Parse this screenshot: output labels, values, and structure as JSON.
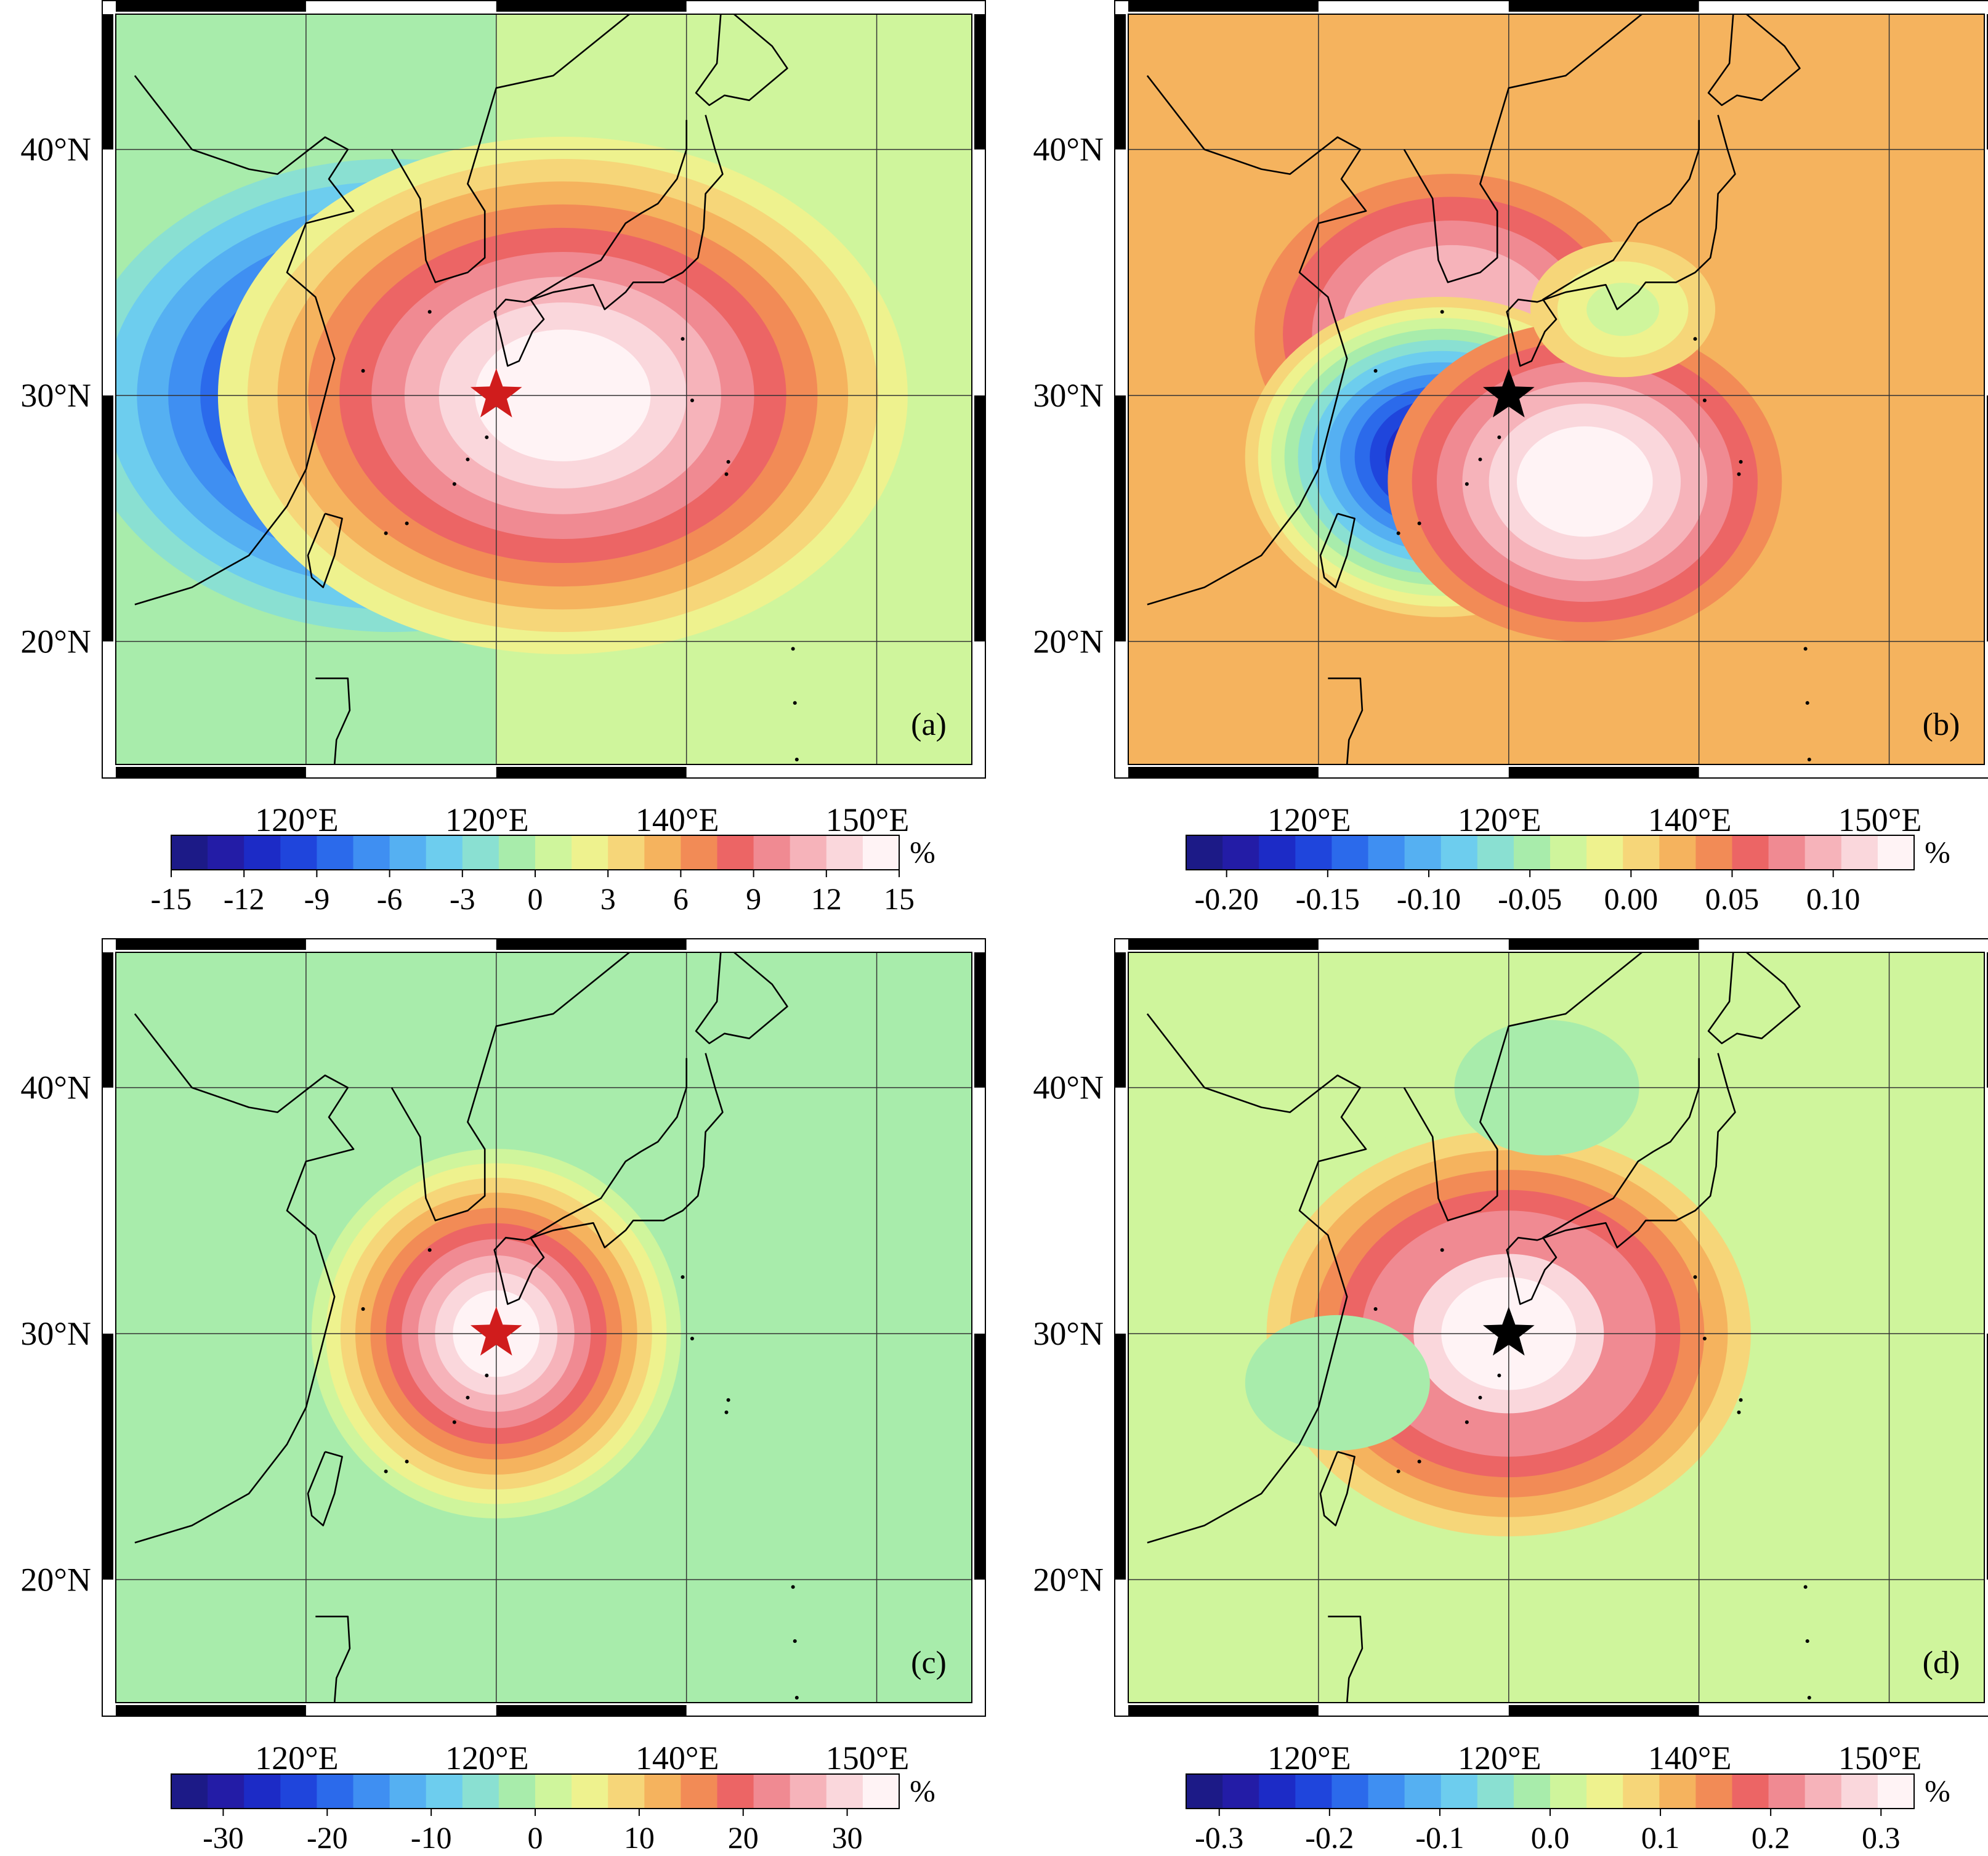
{
  "chart_data": [
    {
      "type": "heatmap",
      "panel_label": "(a)",
      "x_tick_labels": [
        "120°E",
        "120°E",
        "140°E",
        "150°E"
      ],
      "y_tick_labels": [
        "40°N",
        "30°N",
        "20°N"
      ],
      "colorbar": {
        "unit": "%",
        "ticks": [
          -15,
          -12,
          -9,
          -6,
          -3,
          0,
          3,
          6,
          9,
          12,
          15
        ],
        "tick_labels": [
          "-15",
          "-12",
          "-9",
          "-6",
          "-3",
          "0",
          "3",
          "6",
          "9",
          "12",
          "15"
        ],
        "range": [
          -15,
          15
        ]
      },
      "marker": {
        "type": "star",
        "color": "#d01c1c",
        "lon": 130,
        "lat": 30
      },
      "background_west": -1.5,
      "background_east": 0.8,
      "features": [
        {
          "kind": "negative-lobe",
          "lon": 124.5,
          "lat": 30,
          "peak": -15
        },
        {
          "kind": "positive-lobe",
          "lon": 133.5,
          "lat": 30,
          "peak": 15
        }
      ]
    },
    {
      "type": "heatmap",
      "panel_label": "(b)",
      "x_tick_labels": [
        "120°E",
        "120°E",
        "140°E",
        "150°E"
      ],
      "y_tick_labels": [
        "40°N",
        "30°N",
        "20°N"
      ],
      "colorbar": {
        "unit": "%",
        "ticks": [
          -0.2,
          -0.15,
          -0.1,
          -0.05,
          0.0,
          0.05,
          0.1
        ],
        "tick_labels": [
          "-0.20",
          "-0.15",
          "-0.10",
          "-0.05",
          "0.00",
          "0.05",
          "0.10"
        ],
        "range": [
          -0.22,
          0.14
        ]
      },
      "marker": {
        "type": "star",
        "color": "#000000",
        "lon": 130,
        "lat": 30
      },
      "background": 0.02,
      "features": [
        {
          "kind": "positive-lobe",
          "lon": 127,
          "lat": 32.5,
          "peak": 0.12
        },
        {
          "kind": "negative-lobe",
          "lon": 126.5,
          "lat": 27.5,
          "peak": -0.21
        },
        {
          "kind": "positive-lobe",
          "lon": 134,
          "lat": 26.5,
          "peak": 0.14
        },
        {
          "kind": "negative-lobe",
          "lon": 136,
          "lat": 33.5,
          "peak": -0.04
        }
      ]
    },
    {
      "type": "heatmap",
      "panel_label": "(c)",
      "x_tick_labels": [
        "120°E",
        "120°E",
        "140°E",
        "150°E"
      ],
      "y_tick_labels": [
        "40°N",
        "30°N",
        "20°N"
      ],
      "colorbar": {
        "unit": "%",
        "ticks": [
          -30,
          -20,
          -10,
          0,
          10,
          20,
          30
        ],
        "tick_labels": [
          "-30",
          "-20",
          "-10",
          "0",
          "10",
          "20",
          "30"
        ],
        "range": [
          -35,
          35
        ]
      },
      "marker": {
        "type": "star",
        "color": "#d01c1c",
        "lon": 130,
        "lat": 30
      },
      "background": -3,
      "features": [
        {
          "kind": "positive-peak",
          "lon": 130,
          "lat": 30,
          "peak": 35
        }
      ]
    },
    {
      "type": "heatmap",
      "panel_label": "(d)",
      "x_tick_labels": [
        "120°E",
        "120°E",
        "140°E",
        "150°E"
      ],
      "y_tick_labels": [
        "40°N",
        "30°N",
        "20°N"
      ],
      "colorbar": {
        "unit": "%",
        "ticks": [
          -0.3,
          -0.2,
          -0.1,
          0.0,
          0.1,
          0.2,
          0.3
        ],
        "tick_labels": [
          "-0.3",
          "-0.2",
          "-0.1",
          "0.0",
          "0.1",
          "0.2",
          "0.3"
        ],
        "range": [
          -0.33,
          0.33
        ]
      },
      "marker": {
        "type": "star",
        "color": "#000000",
        "lon": 130,
        "lat": 30
      },
      "background": 0.0,
      "features": [
        {
          "kind": "positive-peak",
          "lon": 130,
          "lat": 30,
          "peak": 0.33
        },
        {
          "kind": "negative-lobe",
          "lon": 121,
          "lat": 28,
          "peak": -0.03
        },
        {
          "kind": "negative-lobe",
          "lon": 132,
          "lat": 40,
          "peak": -0.03
        }
      ]
    }
  ]
}
